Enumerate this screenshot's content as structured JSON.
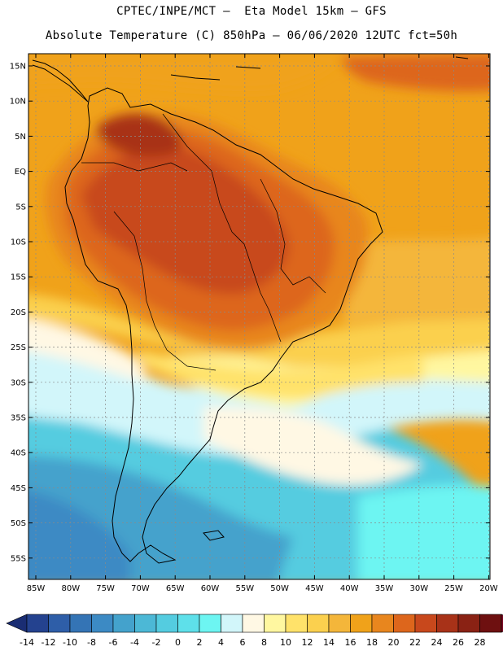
{
  "header": {
    "title_line1": "CPTEC/INPE/MCT –  Eta Model 15km – GFS",
    "title_line2": "Absolute Temperature (C) 850hPa – 06/06/2020 12UTC fct=50h"
  },
  "map": {
    "lat_labels": [
      "15N",
      "10N",
      "5N",
      "EQ",
      "5S",
      "10S",
      "15S",
      "20S",
      "25S",
      "30S",
      "35S",
      "40S",
      "45S",
      "50S",
      "55S"
    ],
    "lon_labels": [
      "85W",
      "80W",
      "75W",
      "70W",
      "65W",
      "60W",
      "55W",
      "50W",
      "45W",
      "40W",
      "35W",
      "30W",
      "25W",
      "20W"
    ]
  },
  "colorbar": {
    "labels": [
      "-14",
      "-12",
      "-10",
      "-8",
      "-6",
      "-4",
      "-2",
      "0",
      "2",
      "4",
      "6",
      "8",
      "10",
      "12",
      "14",
      "16",
      "18",
      "20",
      "22",
      "24",
      "26",
      "28"
    ],
    "colors": [
      "#24428f",
      "#2e5ea8",
      "#3474b5",
      "#3c8ac4",
      "#44a2cc",
      "#4cb8d6",
      "#54cce0",
      "#5ee0ea",
      "#6df5f2",
      "#d2f6fa",
      "#fff8e4",
      "#fff7a0",
      "#ffe26a",
      "#fbd04e",
      "#f4b63a",
      "#f0a21a",
      "#e8861e",
      "#dd661c",
      "#c8481c",
      "#a83218",
      "#8a2214",
      "#6e1010"
    ],
    "under_color": "#1a2d73",
    "over_color": "#7a0420"
  }
}
